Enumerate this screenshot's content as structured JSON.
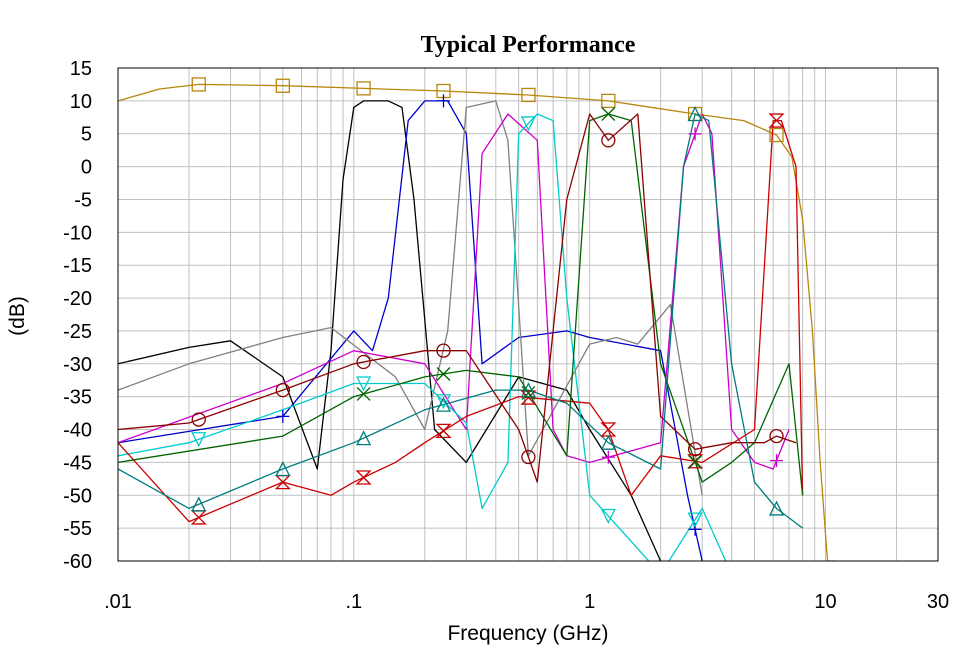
{
  "chart_data": {
    "type": "line",
    "title": "Typical Performance",
    "xlabel": "Frequency (GHz)",
    "ylabel": "(dB)",
    "x_scale": "log",
    "xlim": [
      0.01,
      30
    ],
    "ylim": [
      -60,
      15
    ],
    "grid": true,
    "x_ticks": [
      {
        "value": 0.01,
        "label": ".01"
      },
      {
        "value": 0.1,
        "label": ".1"
      },
      {
        "value": 1,
        "label": "1"
      },
      {
        "value": 10,
        "label": "10"
      },
      {
        "value": 30,
        "label": "30"
      }
    ],
    "y_ticks": [
      15,
      10,
      5,
      0,
      -5,
      -10,
      -15,
      -20,
      -25,
      -30,
      -35,
      -40,
      -45,
      -50,
      -55,
      -60
    ],
    "series": [
      {
        "color": "#b8860b",
        "marker": "square",
        "x": [
          0.01,
          0.015,
          0.022,
          0.05,
          0.11,
          0.24,
          0.55,
          1.2,
          2.8,
          4.5,
          6.2,
          7.2,
          8.0,
          8.8,
          9.5,
          10.2,
          11.0
        ],
        "y": [
          10,
          11.8,
          12.5,
          12.3,
          11.9,
          11.5,
          10.9,
          10,
          8.0,
          7.0,
          4.8,
          1.5,
          -8,
          -25,
          -45,
          -60,
          -60
        ],
        "marker_x": [
          0.022,
          0.05,
          0.11,
          0.24,
          0.55,
          1.2,
          2.8,
          6.2
        ]
      },
      {
        "color": "#000000",
        "x": [
          0.01,
          0.02,
          0.03,
          0.05,
          0.07,
          0.08,
          0.09,
          0.1,
          0.11,
          0.14,
          0.16,
          0.18,
          0.22,
          0.3,
          0.5,
          0.8,
          1.0,
          1.5,
          2.0
        ],
        "y": [
          -30,
          -27.5,
          -26.5,
          -32,
          -46,
          -28,
          -2,
          9,
          10,
          10,
          9,
          -5,
          -40,
          -45,
          -32,
          -34,
          -40,
          -50,
          -60
        ]
      },
      {
        "color": "#0000cd",
        "marker": "plus",
        "x": [
          0.01,
          0.05,
          0.1,
          0.12,
          0.14,
          0.17,
          0.2,
          0.25,
          0.3,
          0.35,
          0.5,
          0.8,
          1.0,
          2.0,
          2.6,
          3.0
        ],
        "y": [
          -42,
          -38,
          -25,
          -28,
          -20,
          7,
          10,
          10,
          5,
          -30,
          -26,
          -25,
          -26,
          -28,
          -50,
          -60
        ],
        "marker_x": [
          0.05,
          0.24,
          2.8
        ]
      },
      {
        "color": "#808080",
        "x": [
          0.01,
          0.02,
          0.05,
          0.08,
          0.15,
          0.2,
          0.25,
          0.3,
          0.4,
          0.45,
          0.55,
          1.0,
          1.3,
          1.6,
          2.2,
          3.0
        ],
        "y": [
          -34,
          -30,
          -26,
          -24.5,
          -32,
          -40,
          -25,
          9,
          10,
          4,
          -44,
          -27,
          -26,
          -27,
          -21,
          -50
        ]
      },
      {
        "color": "#cc00cc",
        "marker": "plus",
        "x": [
          0.01,
          0.05,
          0.1,
          0.2,
          0.3,
          0.35,
          0.45,
          0.6,
          0.7,
          0.8,
          1.0,
          2.0,
          2.5,
          3.0,
          3.3,
          4.0,
          5.0,
          6.0,
          7.0
        ],
        "y": [
          -42,
          -33,
          -28,
          -30,
          -40,
          2,
          8,
          4,
          -40,
          -44,
          -45,
          -42,
          0,
          8,
          5,
          -40,
          -45,
          -46,
          -40
        ],
        "marker_x": [
          1.2,
          2.8,
          6.2
        ]
      },
      {
        "color": "#00cccc",
        "marker": "triangle-down",
        "x": [
          0.01,
          0.02,
          0.05,
          0.1,
          0.2,
          0.3,
          0.35,
          0.45,
          0.5,
          0.6,
          0.7,
          0.8,
          1.0,
          2.0,
          3.0,
          4.0
        ],
        "y": [
          -44,
          -42,
          -37,
          -33,
          -33,
          -39,
          -52,
          -45,
          5,
          8,
          7,
          -20,
          -50,
          -62,
          -52,
          -62
        ],
        "marker_x": [
          0.022,
          0.11,
          0.24,
          0.55,
          1.2,
          2.8
        ]
      },
      {
        "color": "#cc0000",
        "marker": "hourglass",
        "x": [
          0.01,
          0.02,
          0.05,
          0.08,
          0.1,
          0.15,
          0.2,
          0.3,
          0.5,
          1.0,
          1.2,
          1.5,
          2.0,
          3.0,
          5.0,
          6.0,
          6.5,
          7.5,
          8.0
        ],
        "y": [
          -42,
          -54,
          -48,
          -50,
          -48,
          -45,
          -42,
          -38,
          -35,
          -36,
          -40,
          -50,
          -44,
          -45,
          -40,
          7,
          7,
          0,
          -50
        ],
        "marker_x": [
          0.022,
          0.05,
          0.11,
          0.24,
          0.55,
          1.2,
          2.8,
          6.2
        ]
      },
      {
        "color": "#006400",
        "marker": "x",
        "x": [
          0.01,
          0.05,
          0.1,
          0.2,
          0.3,
          0.5,
          0.8,
          1.0,
          1.2,
          1.5,
          2.0,
          3.0,
          4.0,
          5.0,
          7.0,
          8.0
        ],
        "y": [
          -45,
          -41,
          -35,
          -32,
          -31,
          -32,
          -44,
          7,
          8,
          7,
          -30,
          -48,
          -45,
          -42,
          -30,
          -50
        ],
        "marker_x": [
          0.11,
          0.24,
          0.55,
          1.2,
          2.8
        ]
      },
      {
        "color": "#8b0000",
        "marker": "circle",
        "x": [
          0.01,
          0.02,
          0.05,
          0.1,
          0.2,
          0.3,
          0.5,
          0.6,
          0.8,
          1.0,
          1.2,
          1.6,
          2.0,
          2.8,
          4.0,
          5.5,
          6.2,
          7.5
        ],
        "y": [
          -40,
          -39,
          -34,
          -30,
          -28,
          -28,
          -40,
          -48,
          -5,
          8,
          4,
          8,
          -38,
          -43,
          -42,
          -42,
          -41,
          -42
        ],
        "marker_x": [
          0.022,
          0.05,
          0.11,
          0.24,
          0.55,
          1.2,
          2.8,
          6.2
        ]
      },
      {
        "color": "#007b7b",
        "marker": "triangle-up",
        "x": [
          0.01,
          0.02,
          0.05,
          0.1,
          0.2,
          0.4,
          0.55,
          0.8,
          1.2,
          2.0,
          2.5,
          2.8,
          3.2,
          4.0,
          5.0,
          6.2,
          8.0
        ],
        "y": [
          -46,
          -52,
          -46,
          -42,
          -37,
          -34,
          -34,
          -36,
          -42,
          -46,
          0,
          8,
          7,
          -30,
          -48,
          -52,
          -55
        ],
        "marker_x": [
          0.022,
          0.05,
          0.11,
          0.24,
          0.55,
          1.2,
          2.8,
          6.2
        ]
      }
    ]
  }
}
